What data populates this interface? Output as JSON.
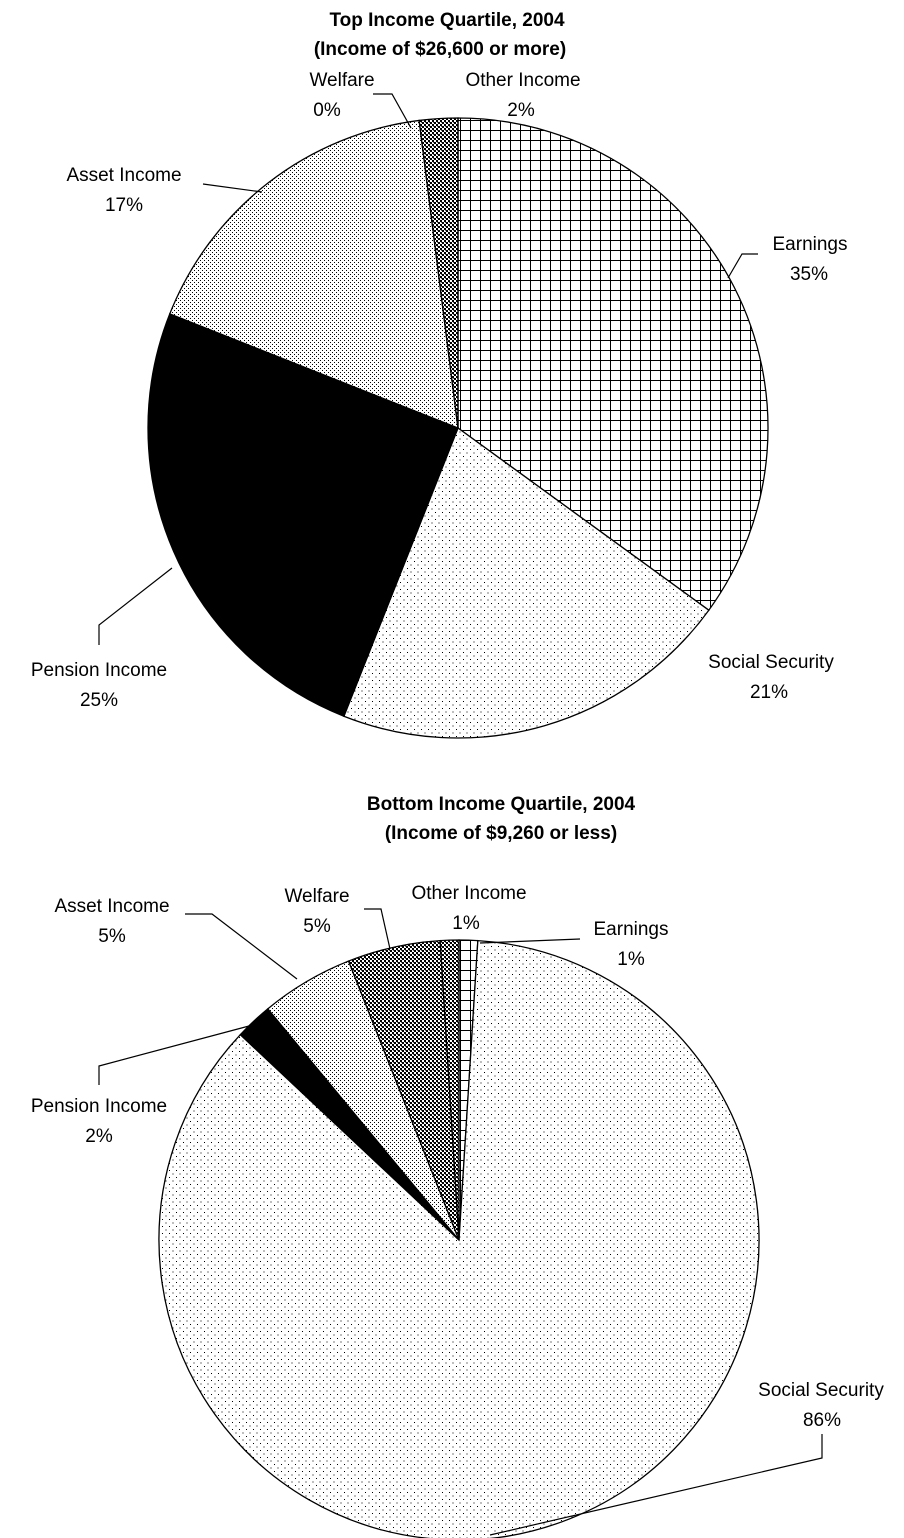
{
  "chart_data": [
    {
      "type": "pie",
      "title": "Top Income Quartile, 2004",
      "subtitle": "(Income of $26,600 or more)",
      "categories": [
        "Earnings",
        "Social Security",
        "Pension Income",
        "Asset Income",
        "Welfare",
        "Other Income"
      ],
      "values": [
        35,
        21,
        25,
        17,
        0,
        2
      ],
      "value_labels": [
        "35%",
        "21%",
        "25%",
        "17%",
        "0%",
        "2%"
      ],
      "patterns": [
        "grid",
        "dots-sparse",
        "solid-black",
        "dots-dense",
        "diamond",
        "diamond"
      ],
      "start_angle": "12 o'clock, clockwise",
      "legend": "none (labels beside slices)"
    },
    {
      "type": "pie",
      "title": "Bottom Income Quartile, 2004",
      "subtitle": "(Income of $9,260 or less)",
      "categories": [
        "Earnings",
        "Social Security",
        "Pension Income",
        "Asset Income",
        "Welfare",
        "Other Income"
      ],
      "values": [
        1,
        86,
        2,
        5,
        5,
        1
      ],
      "value_labels": [
        "1%",
        "86%",
        "2%",
        "5%",
        "5%",
        "1%"
      ],
      "patterns": [
        "grid",
        "dots-sparse",
        "solid-black",
        "dots-dense",
        "diamond",
        "diamond"
      ],
      "start_angle": "12 o'clock, clockwise",
      "legend": "none (labels beside slices)"
    }
  ]
}
